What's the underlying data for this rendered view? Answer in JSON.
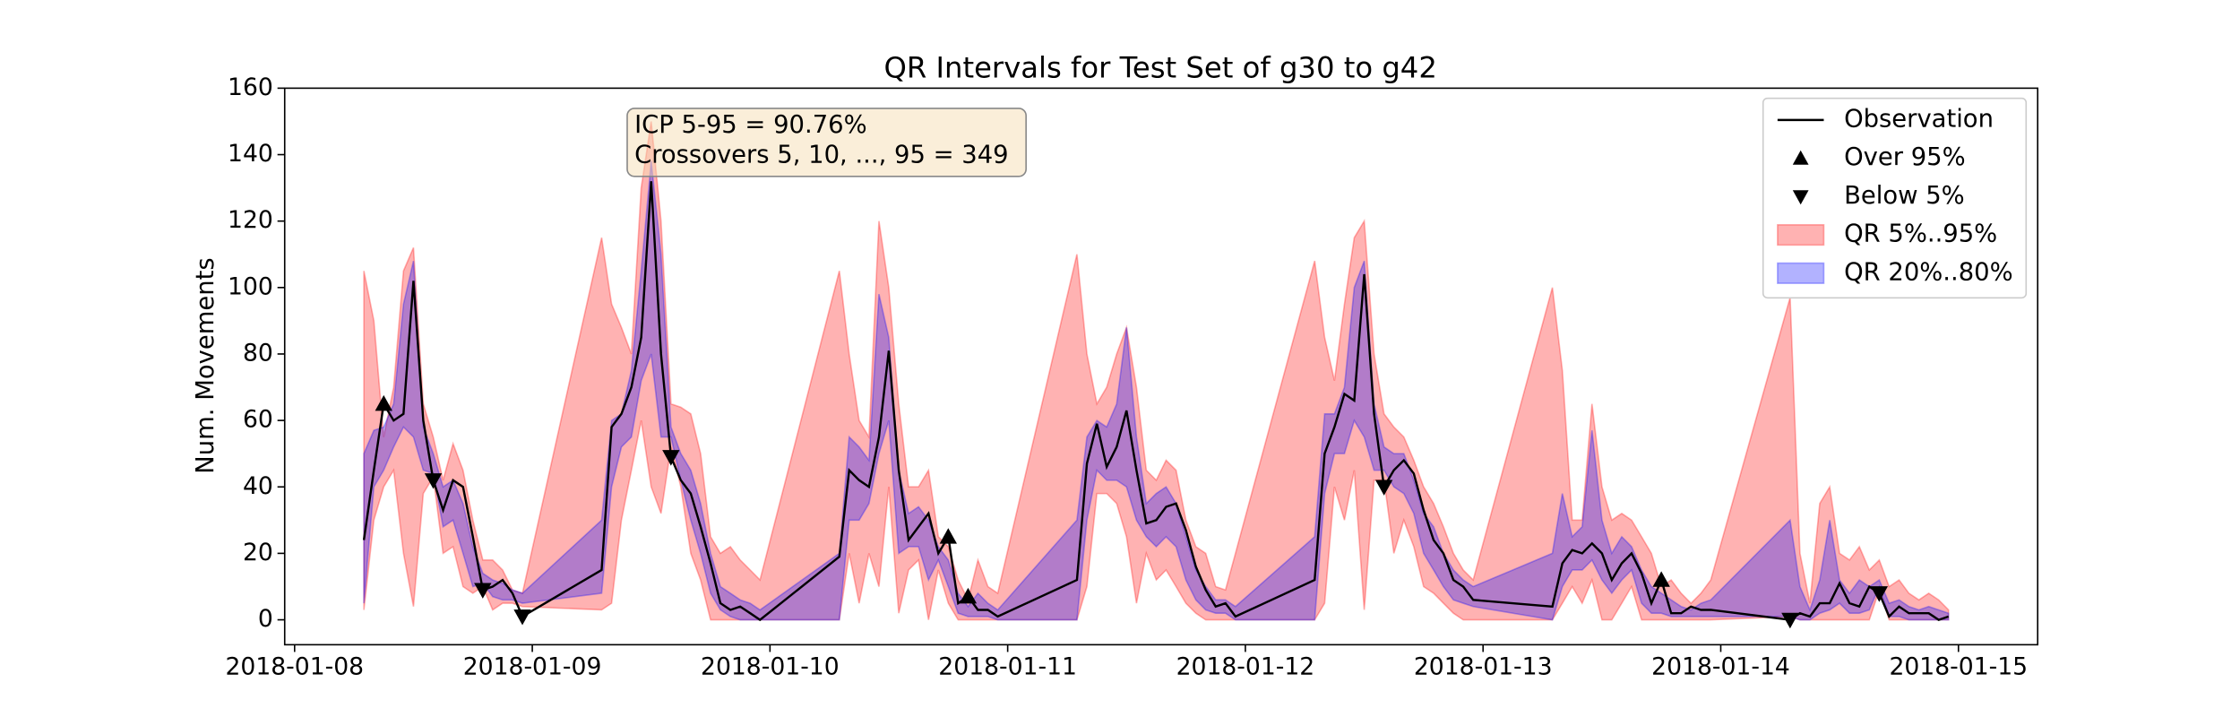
{
  "chart_data": {
    "type": "line",
    "title": "QR Intervals for Test Set of g30 to g42",
    "y_label": "Num. Movements",
    "annotation": [
      "ICP 5-95 = 90.76%",
      "Crossovers 5, 10, ..., 95 = 349"
    ],
    "xlim": [
      "2018-01-07T23:00",
      "2018-01-15T08:00"
    ],
    "xticks": [
      "2018-01-08",
      "2018-01-09",
      "2018-01-10",
      "2018-01-11",
      "2018-01-12",
      "2018-01-13",
      "2018-01-14",
      "2018-01-15"
    ],
    "ylim": [
      -7.5,
      160
    ],
    "yticks": [
      0,
      20,
      40,
      60,
      80,
      100,
      120,
      140,
      160
    ],
    "grid": false,
    "legend": "upper right",
    "x": [
      "2018-01-08T07:00",
      "2018-01-08T08:00",
      "2018-01-08T09:00",
      "2018-01-08T10:00",
      "2018-01-08T11:00",
      "2018-01-08T12:00",
      "2018-01-08T13:00",
      "2018-01-08T14:00",
      "2018-01-08T15:00",
      "2018-01-08T16:00",
      "2018-01-08T17:00",
      "2018-01-08T18:00",
      "2018-01-08T19:00",
      "2018-01-08T20:00",
      "2018-01-08T21:00",
      "2018-01-08T22:00",
      "2018-01-08T23:00",
      "2018-01-09T07:00",
      "2018-01-09T08:00",
      "2018-01-09T09:00",
      "2018-01-09T10:00",
      "2018-01-09T11:00",
      "2018-01-09T12:00",
      "2018-01-09T13:00",
      "2018-01-09T14:00",
      "2018-01-09T15:00",
      "2018-01-09T16:00",
      "2018-01-09T17:00",
      "2018-01-09T18:00",
      "2018-01-09T19:00",
      "2018-01-09T20:00",
      "2018-01-09T21:00",
      "2018-01-09T22:00",
      "2018-01-09T23:00",
      "2018-01-10T07:00",
      "2018-01-10T08:00",
      "2018-01-10T09:00",
      "2018-01-10T10:00",
      "2018-01-10T11:00",
      "2018-01-10T12:00",
      "2018-01-10T13:00",
      "2018-01-10T14:00",
      "2018-01-10T15:00",
      "2018-01-10T16:00",
      "2018-01-10T17:00",
      "2018-01-10T18:00",
      "2018-01-10T19:00",
      "2018-01-10T20:00",
      "2018-01-10T21:00",
      "2018-01-10T22:00",
      "2018-01-10T23:00",
      "2018-01-11T07:00",
      "2018-01-11T08:00",
      "2018-01-11T09:00",
      "2018-01-11T10:00",
      "2018-01-11T11:00",
      "2018-01-11T12:00",
      "2018-01-11T13:00",
      "2018-01-11T14:00",
      "2018-01-11T15:00",
      "2018-01-11T16:00",
      "2018-01-11T17:00",
      "2018-01-11T18:00",
      "2018-01-11T19:00",
      "2018-01-11T20:00",
      "2018-01-11T21:00",
      "2018-01-11T22:00",
      "2018-01-11T23:00",
      "2018-01-12T07:00",
      "2018-01-12T08:00",
      "2018-01-12T09:00",
      "2018-01-12T10:00",
      "2018-01-12T11:00",
      "2018-01-12T12:00",
      "2018-01-12T13:00",
      "2018-01-12T14:00",
      "2018-01-12T15:00",
      "2018-01-12T16:00",
      "2018-01-12T17:00",
      "2018-01-12T18:00",
      "2018-01-12T19:00",
      "2018-01-12T20:00",
      "2018-01-12T21:00",
      "2018-01-12T22:00",
      "2018-01-12T23:00",
      "2018-01-13T07:00",
      "2018-01-13T08:00",
      "2018-01-13T09:00",
      "2018-01-13T10:00",
      "2018-01-13T11:00",
      "2018-01-13T12:00",
      "2018-01-13T13:00",
      "2018-01-13T14:00",
      "2018-01-13T15:00",
      "2018-01-13T16:00",
      "2018-01-13T17:00",
      "2018-01-13T18:00",
      "2018-01-13T19:00",
      "2018-01-13T20:00",
      "2018-01-13T21:00",
      "2018-01-13T22:00",
      "2018-01-13T23:00",
      "2018-01-14T07:00",
      "2018-01-14T08:00",
      "2018-01-14T09:00",
      "2018-01-14T10:00",
      "2018-01-14T11:00",
      "2018-01-14T12:00",
      "2018-01-14T13:00",
      "2018-01-14T14:00",
      "2018-01-14T15:00",
      "2018-01-14T16:00",
      "2018-01-14T17:00",
      "2018-01-14T18:00",
      "2018-01-14T19:00",
      "2018-01-14T20:00",
      "2018-01-14T21:00",
      "2018-01-14T22:00",
      "2018-01-14T23:00"
    ],
    "series": [
      {
        "name": "Observation",
        "kind": "line",
        "color": "#000000",
        "values": [
          24,
          45,
          65,
          60,
          62,
          102,
          60,
          42,
          33,
          42,
          40,
          25,
          9,
          10,
          12,
          8,
          1,
          15,
          58,
          62,
          70,
          85,
          132,
          80,
          49,
          42,
          38,
          28,
          17,
          5,
          3,
          4,
          2,
          0,
          19,
          45,
          42,
          40,
          55,
          81,
          45,
          24,
          28,
          32,
          20,
          25,
          5,
          7,
          3,
          3,
          1,
          12,
          47,
          59,
          46,
          52,
          63,
          45,
          29,
          30,
          34,
          35,
          27,
          16,
          9,
          4,
          5,
          1,
          12,
          50,
          58,
          68,
          66,
          104,
          62,
          40,
          45,
          48,
          44,
          33,
          24,
          20,
          12,
          10,
          6,
          4,
          17,
          21,
          20,
          23,
          20,
          12,
          17,
          20,
          14,
          5,
          12,
          2,
          2,
          4,
          3,
          3,
          0,
          2,
          1,
          5,
          5,
          11,
          5,
          4,
          10,
          8,
          1,
          4,
          2,
          2,
          2,
          0,
          1
        ]
      },
      {
        "name": "Over 95%",
        "kind": "marker",
        "marker": "triangle-up",
        "color": "#000000",
        "x": [
          "2018-01-08T09:00",
          "2018-01-10T18:00",
          "2018-01-10T20:00",
          "2018-01-13T18:00"
        ],
        "values": [
          65,
          25,
          7,
          12
        ]
      },
      {
        "name": "Below 5%",
        "kind": "marker",
        "marker": "triangle-down",
        "color": "#000000",
        "x": [
          "2018-01-08T14:00",
          "2018-01-08T19:00",
          "2018-01-08T23:00",
          "2018-01-09T14:00",
          "2018-01-12T14:00",
          "2018-01-14T07:00",
          "2018-01-14T16:00"
        ],
        "values": [
          42,
          9,
          1,
          49,
          40,
          0,
          8
        ]
      },
      {
        "name": "QR 5%..95%",
        "kind": "band",
        "color": "#ff0000",
        "alpha": 0.3,
        "lower": [
          3,
          30,
          40,
          45,
          20,
          4,
          38,
          43,
          20,
          22,
          10,
          8,
          10,
          3,
          5,
          5,
          4,
          3,
          5,
          30,
          45,
          60,
          40,
          32,
          52,
          40,
          20,
          12,
          0,
          0,
          0,
          0,
          0,
          0,
          0,
          20,
          5,
          20,
          10,
          40,
          2,
          15,
          18,
          0,
          15,
          5,
          0,
          0,
          0,
          0,
          0,
          0,
          10,
          38,
          38,
          35,
          25,
          5,
          20,
          12,
          15,
          10,
          5,
          2,
          0,
          0,
          0,
          0,
          0,
          5,
          40,
          30,
          45,
          3,
          42,
          42,
          20,
          30,
          22,
          10,
          8,
          5,
          2,
          0,
          0,
          0,
          5,
          10,
          5,
          12,
          0,
          0,
          5,
          10,
          0,
          0,
          0,
          0,
          0,
          0,
          0,
          0,
          1,
          0,
          0,
          0,
          0,
          0,
          0,
          0,
          0,
          9,
          0,
          0,
          0,
          0,
          0,
          0,
          0
        ],
        "upper": [
          105,
          90,
          55,
          70,
          105,
          112,
          65,
          55,
          42,
          53,
          45,
          30,
          18,
          18,
          15,
          9,
          8,
          115,
          95,
          88,
          80,
          130,
          150,
          120,
          65,
          64,
          62,
          50,
          25,
          20,
          22,
          18,
          15,
          12,
          105,
          80,
          60,
          55,
          120,
          100,
          65,
          40,
          40,
          45,
          25,
          22,
          12,
          6,
          18,
          10,
          8,
          110,
          80,
          65,
          70,
          80,
          88,
          70,
          45,
          42,
          48,
          45,
          30,
          22,
          20,
          10,
          9,
          20,
          108,
          85,
          72,
          95,
          115,
          120,
          80,
          62,
          58,
          55,
          48,
          40,
          35,
          28,
          20,
          15,
          12,
          100,
          75,
          30,
          30,
          65,
          40,
          30,
          32,
          30,
          25,
          20,
          10,
          12,
          8,
          5,
          8,
          12,
          97,
          20,
          5,
          35,
          40,
          20,
          18,
          22,
          15,
          18,
          10,
          12,
          8,
          6,
          8,
          6,
          3
        ]
      },
      {
        "name": "QR 20%..80%",
        "kind": "band",
        "color": "#0000ff",
        "alpha": 0.3,
        "lower": [
          5,
          40,
          45,
          52,
          58,
          55,
          45,
          44,
          28,
          30,
          20,
          10,
          11,
          7,
          6,
          6,
          5,
          8,
          40,
          52,
          55,
          72,
          80,
          55,
          55,
          42,
          30,
          20,
          8,
          3,
          1,
          0,
          0,
          0,
          0,
          30,
          30,
          35,
          50,
          60,
          20,
          22,
          22,
          12,
          18,
          10,
          2,
          1,
          1,
          1,
          0,
          0,
          30,
          45,
          42,
          42,
          40,
          30,
          25,
          22,
          25,
          22,
          12,
          6,
          3,
          2,
          2,
          0,
          0,
          38,
          50,
          50,
          60,
          55,
          45,
          45,
          40,
          38,
          32,
          20,
          15,
          10,
          6,
          5,
          4,
          0,
          10,
          15,
          15,
          18,
          12,
          8,
          12,
          15,
          5,
          2,
          2,
          1,
          1,
          1,
          1,
          1,
          1,
          0,
          0,
          2,
          3,
          5,
          2,
          2,
          3,
          10,
          1,
          1,
          0,
          0,
          0,
          0,
          0
        ],
        "upper": [
          50,
          57,
          58,
          65,
          95,
          108,
          58,
          50,
          40,
          42,
          35,
          22,
          14,
          12,
          11,
          9,
          8,
          30,
          60,
          62,
          75,
          105,
          138,
          110,
          58,
          50,
          45,
          35,
          20,
          10,
          8,
          6,
          5,
          3,
          20,
          55,
          52,
          48,
          98,
          85,
          45,
          32,
          34,
          30,
          22,
          18,
          8,
          4,
          8,
          5,
          3,
          30,
          55,
          60,
          58,
          65,
          88,
          55,
          35,
          38,
          40,
          35,
          25,
          15,
          10,
          6,
          6,
          4,
          25,
          62,
          62,
          70,
          100,
          108,
          65,
          52,
          50,
          50,
          42,
          32,
          28,
          20,
          15,
          12,
          10,
          20,
          38,
          25,
          28,
          57,
          30,
          20,
          25,
          22,
          15,
          10,
          8,
          6,
          4,
          3,
          5,
          6,
          30,
          10,
          3,
          12,
          30,
          12,
          8,
          12,
          10,
          12,
          5,
          6,
          4,
          3,
          4,
          3,
          2
        ]
      }
    ]
  }
}
